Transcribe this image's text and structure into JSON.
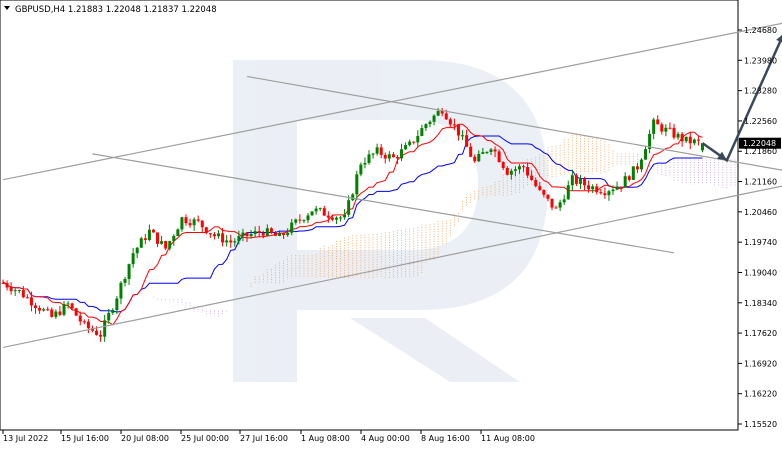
{
  "header": {
    "symbol_line": "GBPUSD,H4  1.21883 1.22048 1.21837 1.22048",
    "menu_icon": "triangle-down-icon"
  },
  "price_tag": {
    "value": "1.22048",
    "color": "#000000"
  },
  "colors": {
    "bull": "#008000",
    "bear": "#ff0000",
    "tenkan": "#ff0000",
    "kijun": "#0000ff",
    "cloud_bull": "#f2a25a",
    "cloud_bear": "#c9a3d6",
    "channel": "#9e9e9e",
    "arrow": "#3a4a5c",
    "watermark": "#dbe3ee"
  },
  "chart_data": {
    "type": "candlestick",
    "symbol": "GBPUSD",
    "timeframe": "H4",
    "ohlc_last": {
      "open": 1.21883,
      "high": 1.22048,
      "low": 1.21837,
      "close": 1.22048
    },
    "ylim": [
      1.1552,
      1.2503
    ],
    "y_ticks": [
      "1.24680",
      "1.23980",
      "1.23280",
      "1.22560",
      "1.21860",
      "1.21160",
      "1.20460",
      "1.19740",
      "1.19040",
      "1.18340",
      "1.17620",
      "1.16920",
      "1.16220",
      "1.15520"
    ],
    "x_ticks": [
      "13 Jul 2022",
      "15 Jul 16:00",
      "20 Jul 08:00",
      "25 Jul 00:00",
      "27 Jul 16:00",
      "1 Aug 08:00",
      "4 Aug 00:00",
      "8 Aug 16:00",
      "11 Aug 08:00"
    ],
    "close_path": [
      [
        0,
        1.188
      ],
      [
        4,
        1.186
      ],
      [
        8,
        1.183
      ],
      [
        12,
        1.18
      ],
      [
        16,
        1.183
      ],
      [
        20,
        1.178
      ],
      [
        24,
        1.176
      ],
      [
        28,
        1.185
      ],
      [
        32,
        1.195
      ],
      [
        36,
        1.2
      ],
      [
        40,
        1.196
      ],
      [
        44,
        1.203
      ],
      [
        48,
        1.202
      ],
      [
        52,
        1.199
      ],
      [
        56,
        1.1975
      ],
      [
        60,
        1.199
      ],
      [
        64,
        1.2
      ],
      [
        68,
        1.1985
      ],
      [
        72,
        1.202
      ],
      [
        76,
        1.205
      ],
      [
        80,
        1.204
      ],
      [
        84,
        1.203
      ],
      [
        88,
        1.216
      ],
      [
        92,
        1.2185
      ],
      [
        96,
        1.217
      ],
      [
        100,
        1.22
      ],
      [
        104,
        1.225
      ],
      [
        108,
        1.2285
      ],
      [
        112,
        1.223
      ],
      [
        116,
        1.216
      ],
      [
        120,
        1.22
      ],
      [
        124,
        1.214
      ],
      [
        128,
        1.215
      ],
      [
        132,
        1.209
      ],
      [
        136,
        1.205
      ],
      [
        140,
        1.212
      ],
      [
        144,
        1.2105
      ],
      [
        148,
        1.2095
      ],
      [
        152,
        1.211
      ],
      [
        156,
        1.215
      ],
      [
        160,
        1.225
      ],
      [
        164,
        1.223
      ],
      [
        168,
        1.221
      ],
      [
        172,
        1.2205
      ]
    ],
    "forecast_path": [
      [
        172,
        1.2205
      ],
      [
        178,
        1.2165
      ],
      [
        192,
        1.246
      ]
    ],
    "channel_upper": [
      [
        0,
        1.212
      ],
      [
        195,
        1.249
      ]
    ],
    "channel_lower": [
      [
        0,
        1.173
      ],
      [
        240,
        1.22
      ]
    ],
    "descending_upper": [
      [
        60,
        1.236
      ],
      [
        205,
        1.212
      ]
    ],
    "descending_lower": [
      [
        22,
        1.218
      ],
      [
        165,
        1.195
      ]
    ]
  }
}
